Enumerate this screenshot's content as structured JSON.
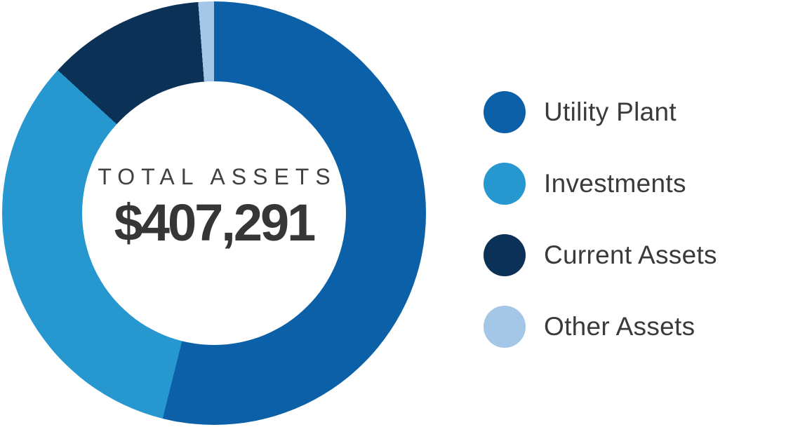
{
  "chart": {
    "center_label": "TOTAL ASSETS",
    "center_value": "$407,291"
  },
  "chart_data": {
    "type": "pie",
    "donut": true,
    "title": "TOTAL ASSETS",
    "center_value": "$407,291",
    "total": 407291,
    "start_angle_deg": 0,
    "clockwise": true,
    "inner_radius_ratio": 0.62,
    "legend_position": "right",
    "background_color": "#ffffff",
    "text_color": "#3a3a3a",
    "segments": [
      {
        "label": "Utility Plant",
        "percent": 53.9,
        "color": "#0c60a7"
      },
      {
        "label": "Investments",
        "percent": 32.9,
        "color": "#2697cf"
      },
      {
        "label": "Current Assets",
        "percent": 12.0,
        "color": "#0c3156"
      },
      {
        "label": "Other Assets",
        "percent": 1.2,
        "color": "#a4c6e7"
      }
    ]
  }
}
